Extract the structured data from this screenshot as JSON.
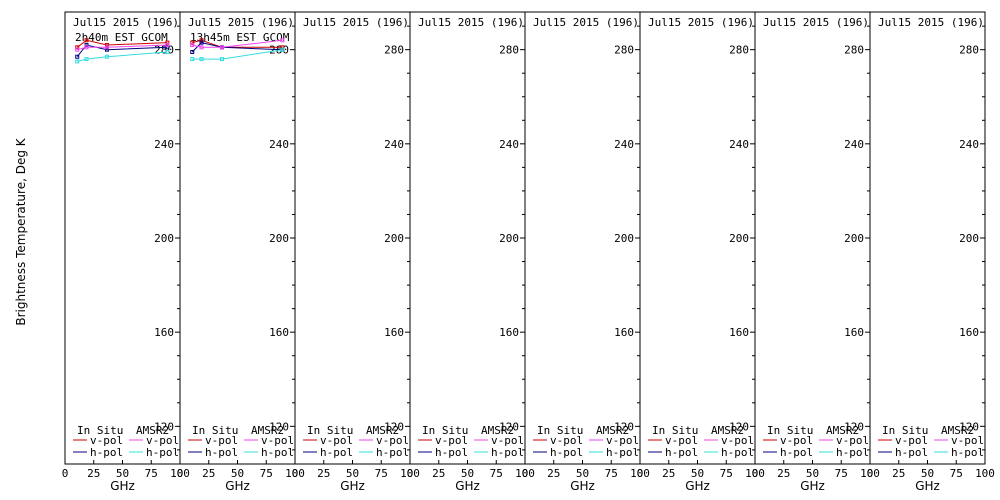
{
  "y_axis_label": "Brightness Temperature, Deg K",
  "x_axis_label": "GHz",
  "legend": {
    "in_situ_label": "In Situ",
    "amsr2_label": "AMSR2",
    "vpol_label": "v-pol",
    "hpol_label": "h-pol"
  },
  "colors": {
    "insitu_v": "#cc0000",
    "insitu_h": "#000080",
    "amsr2_v": "#ee44ee",
    "amsr2_h": "#33dddd",
    "frame": "#000000"
  },
  "chart_data": {
    "type": "line",
    "xlim": [
      0,
      100
    ],
    "ylim": [
      104,
      296
    ],
    "x_ticks": [
      0,
      25,
      50,
      75,
      100
    ],
    "y_ticks": [
      120,
      160,
      200,
      240,
      280
    ],
    "panels": [
      {
        "title": "Jul15 2015 (196)",
        "subtitle": "2h40m EST GCOM",
        "series": [
          {
            "key": "insitu_v",
            "x": [
              10.65,
              18.7,
              36.5,
              89
            ],
            "y": [
              281,
              284,
              282,
              283
            ]
          },
          {
            "key": "insitu_h",
            "x": [
              10.65,
              18.7,
              36.5,
              89
            ],
            "y": [
              277,
              282,
              280,
              281
            ]
          },
          {
            "key": "amsr2_v",
            "x": [
              10.65,
              18.7,
              36.5,
              89
            ],
            "y": [
              280,
              281,
              281,
              282
            ]
          },
          {
            "key": "amsr2_h",
            "x": [
              10.65,
              18.7,
              36.5,
              89
            ],
            "y": [
              275,
              276,
              277,
              279
            ]
          }
        ]
      },
      {
        "title": "Jul15 2015 (196)",
        "subtitle": "13h45m EST GCOM",
        "series": [
          {
            "key": "insitu_v",
            "x": [
              10.65,
              18.7,
              36.5,
              89
            ],
            "y": [
              283,
              284,
              281,
              281
            ]
          },
          {
            "key": "insitu_h",
            "x": [
              10.65,
              18.7,
              36.5,
              89
            ],
            "y": [
              279,
              283,
              281,
              280
            ]
          },
          {
            "key": "amsr2_v",
            "x": [
              10.65,
              18.7,
              36.5,
              89
            ],
            "y": [
              282,
              281,
              281,
              284
            ]
          },
          {
            "key": "amsr2_h",
            "x": [
              10.65,
              18.7,
              36.5,
              89
            ],
            "y": [
              276,
              276,
              276,
              280
            ]
          }
        ]
      },
      {
        "title": "Jul15 2015 (196)",
        "subtitle": "",
        "series": []
      },
      {
        "title": "Jul15 2015 (196)",
        "subtitle": "",
        "series": []
      },
      {
        "title": "Jul15 2015 (196)",
        "subtitle": "",
        "series": []
      },
      {
        "title": "Jul15 2015 (196)",
        "subtitle": "",
        "series": []
      },
      {
        "title": "Jul15 2015 (196)",
        "subtitle": "",
        "series": []
      },
      {
        "title": "Jul15 2015 (196)",
        "subtitle": "",
        "series": []
      }
    ]
  }
}
